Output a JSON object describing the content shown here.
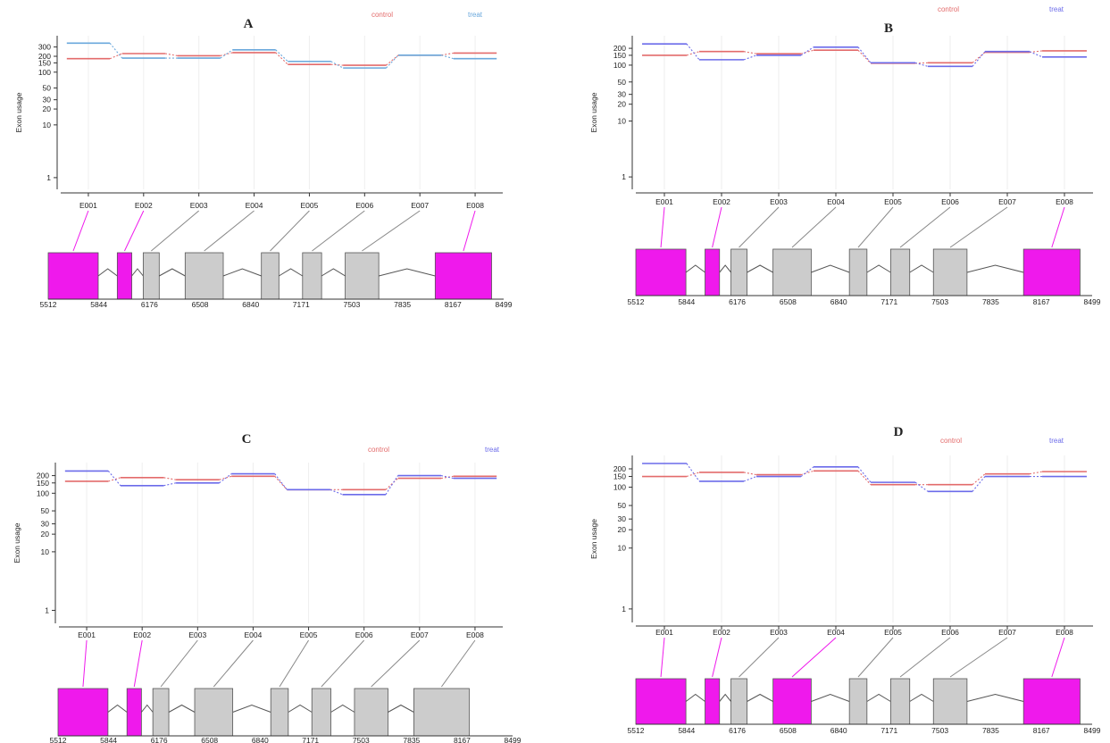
{
  "colors": {
    "control": "#e36b6b",
    "treat_A": "#6aa8dc",
    "treat": "#6b6bea",
    "exon_highlight": "#ef19ec",
    "exon_normal": "#cccccc",
    "grid": "#eeeeee"
  },
  "chart_data": [
    {
      "panel": "A",
      "type": "line",
      "ylabel": "Exon usage",
      "yscale": "log",
      "yticks": [
        1,
        10,
        20,
        30,
        50,
        100,
        150,
        200,
        300
      ],
      "legend": [
        "control",
        "treat"
      ],
      "categories": [
        "E001",
        "E002",
        "E003",
        "E004",
        "E005",
        "E006",
        "E007",
        "E008"
      ],
      "series": [
        {
          "name": "control",
          "values": [
            180,
            225,
            205,
            235,
            140,
            135,
            210,
            230
          ]
        },
        {
          "name": "treat",
          "values": [
            355,
            185,
            185,
            265,
            160,
            120,
            210,
            180
          ]
        }
      ],
      "genomic_ticks": [
        "5512",
        "5844",
        "6176",
        "6508",
        "6840",
        "7171",
        "7503",
        "7835",
        "8167",
        "8499"
      ],
      "highlighted_exons": [
        "E001",
        "E002",
        "E008"
      ]
    },
    {
      "panel": "B",
      "type": "line",
      "ylabel": "Exon usage",
      "yscale": "log",
      "yticks": [
        1,
        10,
        20,
        30,
        50,
        100,
        150,
        200
      ],
      "legend": [
        "control",
        "treat"
      ],
      "categories": [
        "E001",
        "E002",
        "E003",
        "E004",
        "E005",
        "E006",
        "E007",
        "E008"
      ],
      "series": [
        {
          "name": "control",
          "values": [
            150,
            175,
            160,
            185,
            108,
            110,
            170,
            180
          ]
        },
        {
          "name": "treat",
          "values": [
            240,
            125,
            150,
            210,
            110,
            95,
            175,
            140
          ]
        }
      ],
      "genomic_ticks": [
        "5512",
        "5844",
        "6176",
        "6508",
        "6840",
        "7171",
        "7503",
        "7835",
        "8167",
        "8499"
      ],
      "highlighted_exons": [
        "E001",
        "E002",
        "E008"
      ]
    },
    {
      "panel": "C",
      "type": "line",
      "ylabel": "Exon usage",
      "yscale": "log",
      "yticks": [
        1,
        10,
        20,
        30,
        50,
        100,
        150,
        200
      ],
      "legend": [
        "control",
        "treat"
      ],
      "categories": [
        "E001",
        "E002",
        "E003",
        "E004",
        "E005",
        "E006",
        "E007",
        "E008"
      ],
      "series": [
        {
          "name": "control",
          "values": [
            160,
            185,
            170,
            195,
            115,
            115,
            180,
            195
          ]
        },
        {
          "name": "treat",
          "values": [
            240,
            135,
            150,
            215,
            115,
            95,
            200,
            180
          ]
        }
      ],
      "genomic_ticks": [
        "5512",
        "5844",
        "6176",
        "6508",
        "6840",
        "7171",
        "7503",
        "7835",
        "8167",
        "8499"
      ],
      "highlighted_exons": [
        "E001",
        "E002"
      ]
    },
    {
      "panel": "D",
      "type": "line",
      "ylabel": "Exon usage",
      "yscale": "log",
      "yticks": [
        1,
        10,
        20,
        30,
        50,
        100,
        150,
        200
      ],
      "legend": [
        "control",
        "treat"
      ],
      "categories": [
        "E001",
        "E002",
        "E003",
        "E004",
        "E005",
        "E006",
        "E007",
        "E008"
      ],
      "series": [
        {
          "name": "control",
          "values": [
            150,
            175,
            160,
            185,
            110,
            110,
            165,
            180
          ]
        },
        {
          "name": "treat",
          "values": [
            245,
            125,
            150,
            215,
            120,
            85,
            150,
            150
          ]
        }
      ],
      "genomic_ticks": [
        "5512",
        "5844",
        "6176",
        "6508",
        "6840",
        "7171",
        "7503",
        "7835",
        "8167",
        "8499"
      ],
      "highlighted_exons": [
        "E001",
        "E002",
        "E004",
        "E008"
      ]
    }
  ]
}
